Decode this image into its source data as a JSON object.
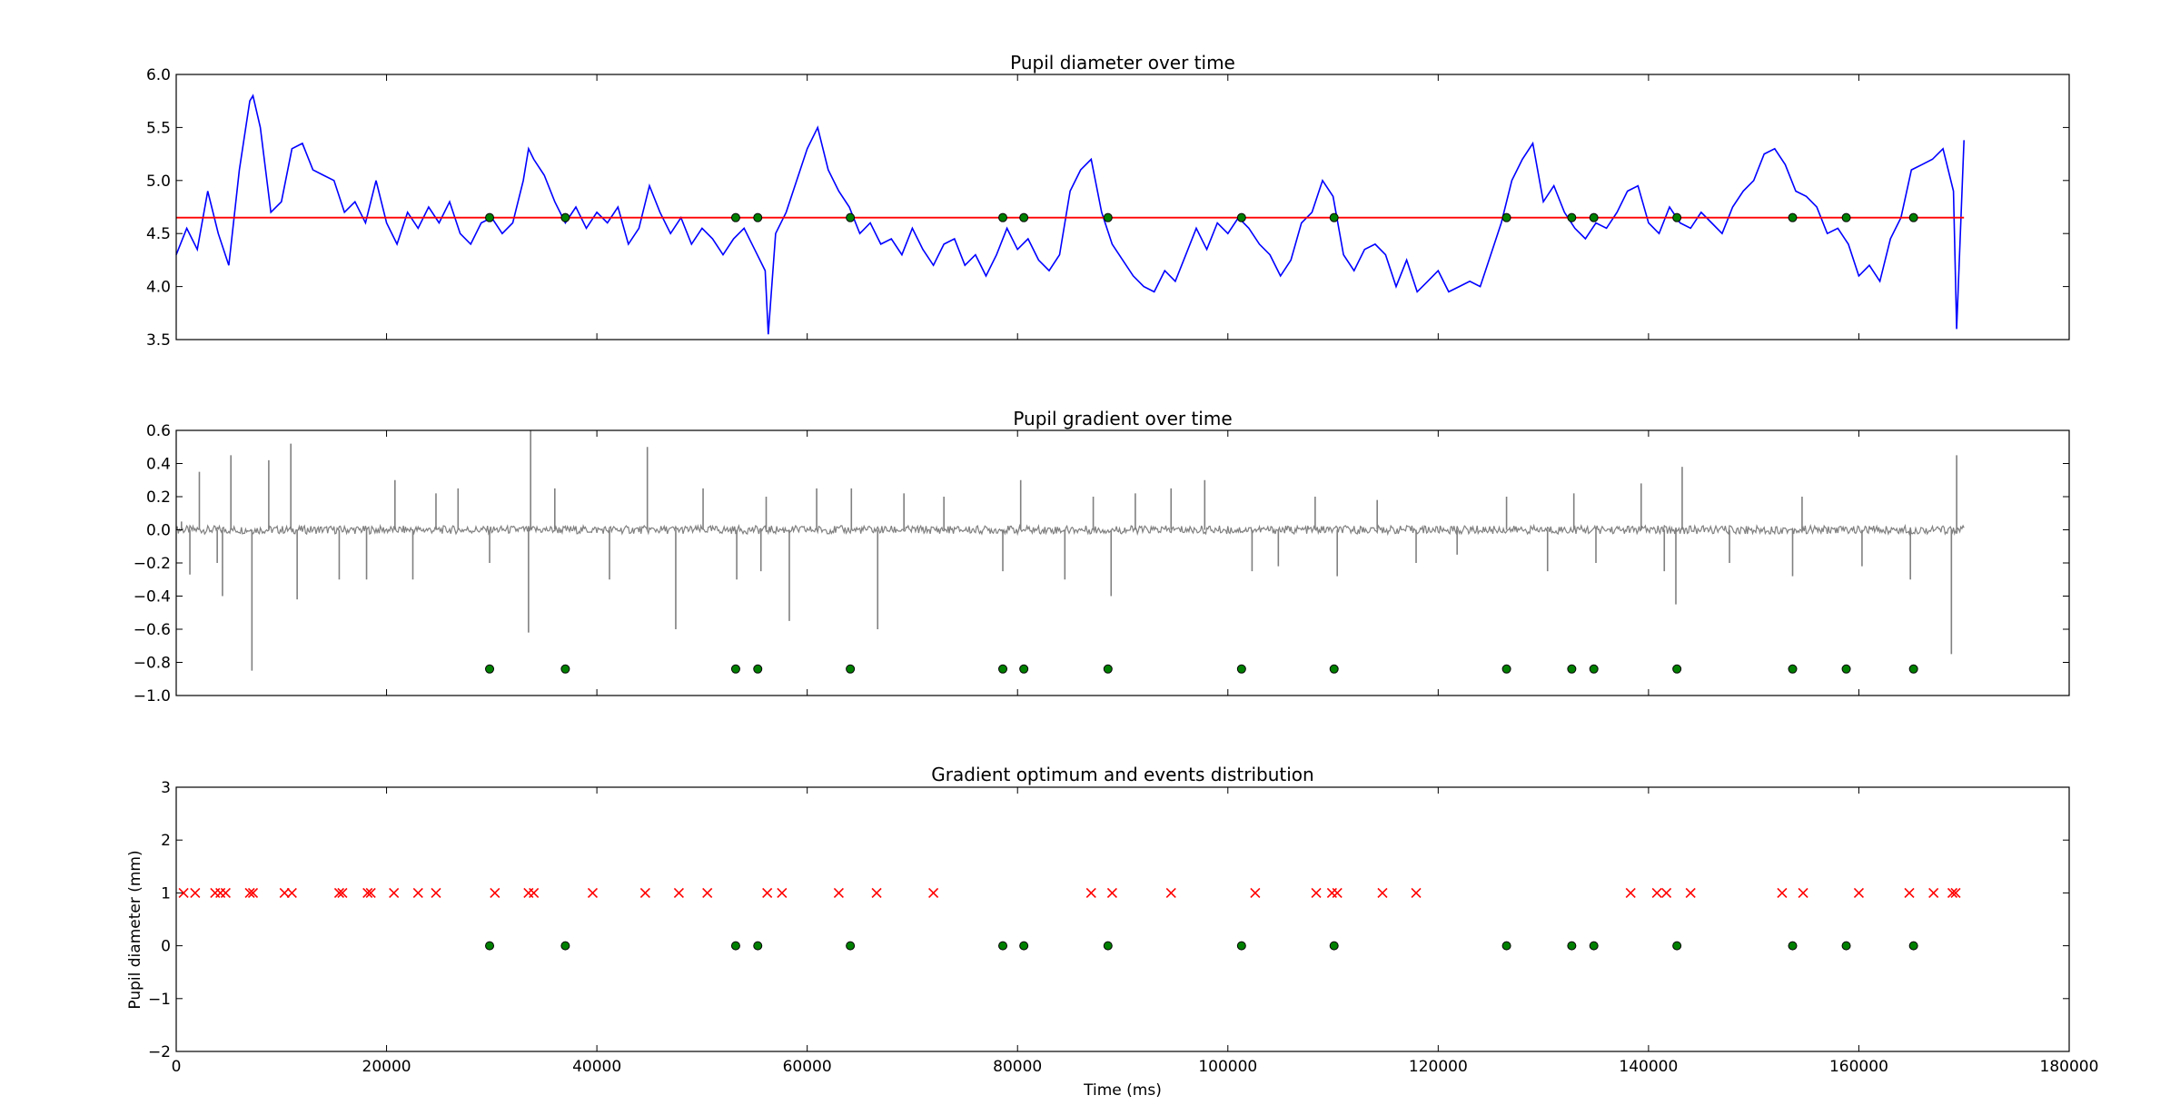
{
  "chart_data": [
    {
      "type": "line",
      "title": "Pupil diameter over time",
      "xlabel": "",
      "ylabel": "",
      "xlim": [
        0,
        180000
      ],
      "ylim": [
        3.5,
        6.0
      ],
      "yticks": [
        "3.5",
        "4.0",
        "4.5",
        "5.0",
        "5.5",
        "6.0"
      ],
      "grid": false,
      "series": [
        {
          "color": "#0000ff",
          "x": [
            0,
            1000,
            2000,
            3000,
            4000,
            5000,
            6000,
            7000,
            7300,
            8000,
            9000,
            10000,
            11000,
            12000,
            13000,
            14000,
            15000,
            16000,
            17000,
            18000,
            19000,
            20000,
            21000,
            22000,
            23000,
            24000,
            25000,
            26000,
            27000,
            28000,
            29000,
            30000,
            31000,
            32000,
            33000,
            33500,
            34000,
            35000,
            36000,
            37000,
            38000,
            39000,
            40000,
            41000,
            42000,
            43000,
            44000,
            45000,
            46000,
            47000,
            48000,
            49000,
            50000,
            51000,
            52000,
            53000,
            54000,
            55000,
            56000,
            56300,
            57000,
            58000,
            59000,
            60000,
            61000,
            62000,
            63000,
            64000,
            65000,
            66000,
            67000,
            68000,
            69000,
            70000,
            71000,
            72000,
            73000,
            74000,
            75000,
            76000,
            77000,
            78000,
            79000,
            80000,
            81000,
            82000,
            83000,
            84000,
            85000,
            86000,
            87000,
            88000,
            89000,
            90000,
            91000,
            92000,
            93000,
            94000,
            95000,
            96000,
            97000,
            98000,
            99000,
            100000,
            101000,
            102000,
            103000,
            104000,
            105000,
            106000,
            107000,
            108000,
            109000,
            110000,
            111000,
            112000,
            113000,
            114000,
            115000,
            116000,
            117000,
            118000,
            119000,
            120000,
            121000,
            122000,
            123000,
            124000,
            125000,
            126000,
            127000,
            128000,
            129000,
            130000,
            131000,
            132000,
            133000,
            134000,
            135000,
            136000,
            137000,
            138000,
            139000,
            140000,
            141000,
            142000,
            143000,
            144000,
            145000,
            146000,
            147000,
            148000,
            149000,
            150000,
            151000,
            152000,
            153000,
            154000,
            155000,
            156000,
            157000,
            158000,
            159000,
            160000,
            161000,
            162000,
            163000,
            164000,
            165000,
            166000,
            167000,
            168000,
            169000,
            169300,
            170000
          ],
          "y": [
            4.3,
            4.55,
            4.35,
            4.9,
            4.5,
            4.2,
            5.1,
            5.75,
            5.8,
            5.5,
            4.7,
            4.8,
            5.3,
            5.35,
            5.1,
            5.05,
            5.0,
            4.7,
            4.8,
            4.6,
            5.0,
            4.6,
            4.4,
            4.7,
            4.55,
            4.75,
            4.6,
            4.8,
            4.5,
            4.4,
            4.6,
            4.65,
            4.5,
            4.6,
            5.0,
            5.3,
            5.2,
            5.05,
            4.8,
            4.6,
            4.75,
            4.55,
            4.7,
            4.6,
            4.75,
            4.4,
            4.55,
            4.95,
            4.7,
            4.5,
            4.65,
            4.4,
            4.55,
            4.45,
            4.3,
            4.45,
            4.55,
            4.35,
            4.15,
            3.55,
            4.5,
            4.7,
            5.0,
            5.3,
            5.5,
            5.1,
            4.9,
            4.75,
            4.5,
            4.6,
            4.4,
            4.45,
            4.3,
            4.55,
            4.35,
            4.2,
            4.4,
            4.45,
            4.2,
            4.3,
            4.1,
            4.3,
            4.55,
            4.35,
            4.45,
            4.25,
            4.15,
            4.3,
            4.9,
            5.1,
            5.2,
            4.7,
            4.4,
            4.25,
            4.1,
            4.0,
            3.95,
            4.15,
            4.05,
            4.3,
            4.55,
            4.35,
            4.6,
            4.5,
            4.65,
            4.55,
            4.4,
            4.3,
            4.1,
            4.25,
            4.6,
            4.7,
            5.0,
            4.85,
            4.3,
            4.15,
            4.35,
            4.4,
            4.3,
            4.0,
            4.25,
            3.95,
            4.05,
            4.15,
            3.95,
            4.0,
            4.05,
            4.0,
            4.3,
            4.6,
            5.0,
            5.2,
            5.35,
            4.8,
            4.95,
            4.7,
            4.55,
            4.45,
            4.6,
            4.55,
            4.7,
            4.9,
            4.95,
            4.6,
            4.5,
            4.75,
            4.6,
            4.55,
            4.7,
            4.6,
            4.5,
            4.75,
            4.9,
            5.0,
            5.25,
            5.3,
            5.15,
            4.9,
            4.85,
            4.75,
            4.5,
            4.55,
            4.4,
            4.1,
            4.2,
            4.05,
            4.45,
            4.65,
            5.1,
            5.15,
            5.2,
            5.3,
            4.9,
            3.6,
            5.38
          ]
        },
        {
          "name": "",
          "color": "#ff0000",
          "x": [
            0,
            170000
          ],
          "y": [
            4.65,
            4.65
          ]
        }
      ],
      "markers": {
        "color": "#008000",
        "x": [
          29800,
          37000,
          53200,
          55300,
          64100,
          78600,
          80600,
          88600,
          101300,
          110100,
          126500,
          132700,
          134800,
          142700,
          153700,
          158800,
          165200
        ],
        "y": 4.65
      }
    },
    {
      "type": "line",
      "title": "Pupil gradient over time",
      "xlabel": "",
      "ylabel": "",
      "xlim": [
        0,
        180000
      ],
      "ylim": [
        -1.0,
        0.6
      ],
      "yticks": [
        "−1.0",
        "−0.8",
        "−0.6",
        "−0.4",
        "−0.2",
        "0.0",
        "0.2",
        "0.4",
        "0.6"
      ],
      "grid": false,
      "series": [
        {
          "color": "#808080",
          "baseline": 0.0,
          "spikes_x": [
            500,
            1300,
            2200,
            3900,
            4400,
            5200,
            7200,
            8800,
            10900,
            11500,
            15500,
            18100,
            20800,
            22500,
            24700,
            26800,
            29800,
            33500,
            33700,
            36000,
            41200,
            44800,
            47500,
            50100,
            53300,
            55600,
            56100,
            58300,
            60900,
            64200,
            66700,
            69200,
            73000,
            78600,
            80300,
            84500,
            87200,
            88900,
            91200,
            94600,
            97800,
            102300,
            104800,
            108300,
            110400,
            114200,
            117900,
            121800,
            126500,
            130400,
            132900,
            135000,
            139300,
            141500,
            142600,
            143200,
            147700,
            153700,
            154600,
            160300,
            164900,
            168800,
            169300
          ],
          "spikes_y": [
            0.05,
            -0.27,
            0.35,
            -0.2,
            -0.4,
            0.45,
            -0.85,
            0.42,
            0.52,
            -0.42,
            -0.3,
            -0.3,
            0.3,
            -0.3,
            0.22,
            0.25,
            -0.2,
            -0.62,
            0.6,
            0.25,
            -0.3,
            0.5,
            -0.6,
            0.25,
            -0.3,
            -0.25,
            0.2,
            -0.55,
            0.25,
            0.25,
            -0.6,
            0.22,
            0.2,
            -0.25,
            0.3,
            -0.3,
            0.2,
            -0.4,
            0.22,
            0.25,
            0.3,
            -0.25,
            -0.22,
            0.2,
            -0.28,
            0.18,
            -0.2,
            -0.15,
            0.2,
            -0.25,
            0.22,
            -0.2,
            0.28,
            -0.25,
            -0.45,
            0.38,
            -0.2,
            -0.28,
            0.2,
            -0.22,
            -0.3,
            -0.75,
            0.45
          ]
        }
      ],
      "markers": {
        "color": "#008000",
        "x": [
          29800,
          37000,
          53200,
          55300,
          64100,
          78600,
          80600,
          88600,
          101300,
          110100,
          126500,
          132700,
          134800,
          142700,
          153700,
          158800,
          165200
        ],
        "y": -0.84
      }
    },
    {
      "type": "scatter",
      "title": "Gradient optimum and events distribution",
      "xlabel": "Time (ms)",
      "ylabel": "Pupil diameter (mm)",
      "xlim": [
        0,
        180000
      ],
      "ylim": [
        -2,
        3
      ],
      "yticks": [
        "−2",
        "−1",
        "0",
        "1",
        "2",
        "3"
      ],
      "xticks": [
        "0",
        "20000",
        "40000",
        "60000",
        "80000",
        "100000",
        "120000",
        "140000",
        "160000",
        "180000"
      ],
      "grid": false,
      "series": [
        {
          "marker": "x",
          "color": "#ff0000",
          "y": 1,
          "x": [
            700,
            1800,
            3700,
            4200,
            4700,
            7000,
            7300,
            10300,
            11000,
            15500,
            15800,
            18200,
            18500,
            20700,
            23000,
            24700,
            30300,
            33500,
            34000,
            39600,
            44600,
            47800,
            50500,
            56200,
            57600,
            63000,
            66600,
            72000,
            87000,
            89000,
            94600,
            102600,
            108400,
            109900,
            110400,
            114700,
            117900,
            138300,
            140800,
            141700,
            144000,
            152700,
            154700,
            160000,
            164800,
            167100,
            168900,
            169200
          ]
        },
        {
          "marker": "o",
          "color": "#008000",
          "y": 0,
          "x": [
            29800,
            37000,
            53200,
            55300,
            64100,
            78600,
            80600,
            88600,
            101300,
            110100,
            126500,
            132700,
            134800,
            142700,
            153700,
            158800,
            165200
          ]
        }
      ]
    }
  ]
}
